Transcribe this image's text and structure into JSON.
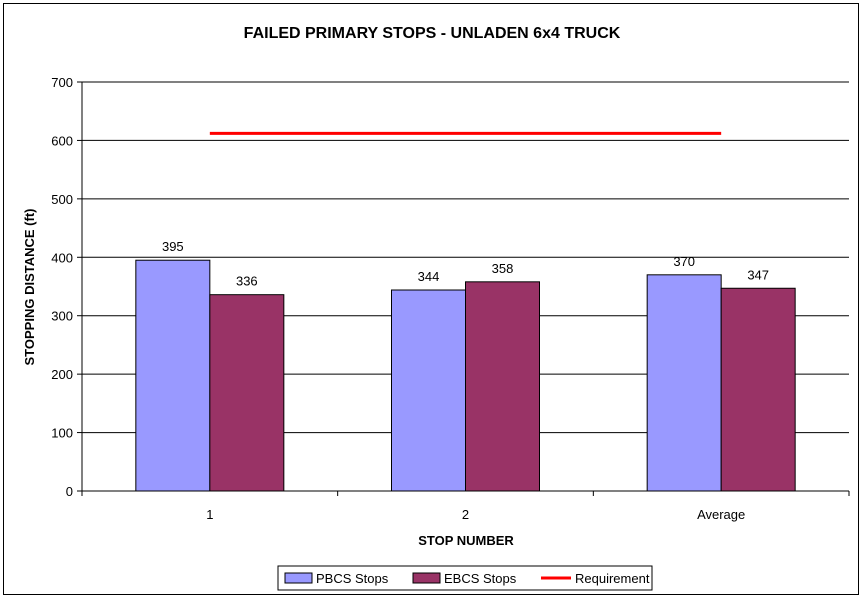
{
  "chart_data": {
    "type": "bar",
    "title": "FAILED PRIMARY STOPS - UNLADEN 6x4 TRUCK",
    "xlabel": "STOP NUMBER",
    "ylabel": "STOPPING DISTANCE (ft)",
    "ylim": [
      0,
      700
    ],
    "yticks": [
      0,
      100,
      200,
      300,
      400,
      500,
      600,
      700
    ],
    "categories": [
      "1",
      "2",
      "Average"
    ],
    "series": [
      {
        "name": "PBCS Stops",
        "values": [
          395,
          344,
          370
        ],
        "color": "#9999ff"
      },
      {
        "name": "EBCS Stops",
        "values": [
          336,
          358,
          347
        ],
        "color": "#993366"
      }
    ],
    "reference_line": {
      "name": "Requirement",
      "value": 612,
      "color": "#ff0000"
    },
    "grid": true,
    "legend_position": "bottom"
  }
}
